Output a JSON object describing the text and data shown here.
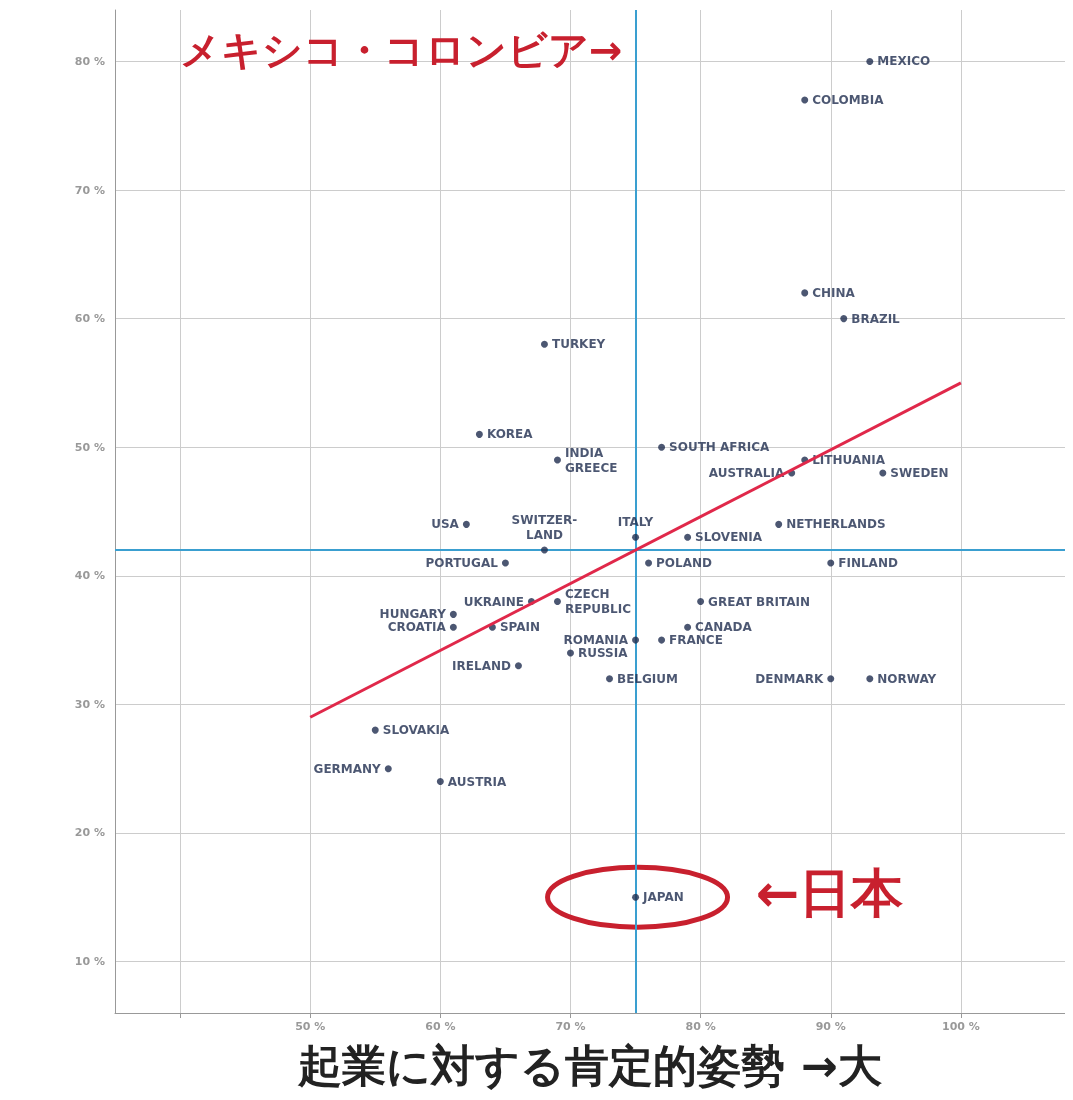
{
  "chart_data": {
    "type": "scatter",
    "xlabel": "起業に対する肯定的姿勢 →大",
    "xlim": [
      35,
      108
    ],
    "xticks": [
      {
        "value": 40,
        "label": null
      },
      {
        "value": 50,
        "label": "50 %"
      },
      {
        "value": 60,
        "label": "60 %"
      },
      {
        "value": 70,
        "label": "70 %"
      },
      {
        "value": 80,
        "label": "80 %"
      },
      {
        "value": 90,
        "label": "90 %"
      },
      {
        "value": 100,
        "label": "100 %"
      }
    ],
    "ylim": [
      6,
      84
    ],
    "yticks": [
      {
        "value": 10,
        "label": "10 %"
      },
      {
        "value": 20,
        "label": "20 %"
      },
      {
        "value": 30,
        "label": "30 %"
      },
      {
        "value": 40,
        "label": "40 %"
      },
      {
        "value": 50,
        "label": "50 %"
      },
      {
        "value": 60,
        "label": "60 %"
      },
      {
        "value": 70,
        "label": "70 %"
      },
      {
        "value": 80,
        "label": "80 %"
      }
    ],
    "grid": true,
    "series": [
      {
        "marker": "circle",
        "color": "#1f2d4f",
        "x": [
          93,
          88,
          88,
          91,
          68,
          63,
          69,
          77,
          88,
          87,
          94,
          62,
          68,
          75,
          79,
          86,
          65,
          76,
          90,
          67,
          69,
          80,
          61,
          61,
          64,
          79,
          75,
          77,
          70,
          66,
          73,
          90,
          93,
          55,
          56,
          60,
          75
        ],
        "values": [
          80,
          77,
          62,
          60,
          58,
          51,
          49,
          50,
          49,
          48,
          48,
          44,
          42,
          43,
          43,
          44,
          41,
          41,
          41,
          38,
          38,
          38,
          37,
          36,
          36,
          36,
          35,
          35,
          34,
          33,
          32,
          32,
          32,
          28,
          25,
          24,
          15
        ],
        "value_labels": [
          "MEXICO",
          "COLOMBIA",
          "CHINA",
          "BRAZIL",
          "TURKEY",
          "KOREA",
          "INDIA\nGREECE",
          "SOUTH AFRICA",
          "LITHUANIA",
          "AUSTRALIA",
          "SWEDEN",
          "USA",
          "SWITZER-\nLAND",
          "ITALY",
          "SLOVENIA",
          "NETHERLANDS",
          "PORTUGAL",
          "POLAND",
          "FINLAND",
          "UKRAINE",
          "CZECH\nREPUBLIC",
          "GREAT BRITAIN",
          "HUNGARY",
          "CROATIA",
          "SPAIN",
          "CANADA",
          "ROMANIA",
          "FRANCE",
          "RUSSIA",
          "IRELAND",
          "BELGIUM",
          "DENMARK",
          "NORWAY",
          "SLOVAKIA",
          "GERMANY",
          "AUSTRIA",
          "JAPAN"
        ]
      },
      {
        "type": "line",
        "color": "#e0284a",
        "x": [
          50,
          100
        ],
        "values": [
          29,
          55
        ]
      }
    ],
    "ref_lines": [
      {
        "axis": "x",
        "value": 75,
        "color": "#3a9fd0"
      },
      {
        "axis": "y",
        "value": 42,
        "color": "#3a9fd0"
      }
    ],
    "annotations": [
      "メキシコ・コロンビア→",
      {
        "text": "←日本",
        "x": 75,
        "y": 15
      }
    ]
  }
}
